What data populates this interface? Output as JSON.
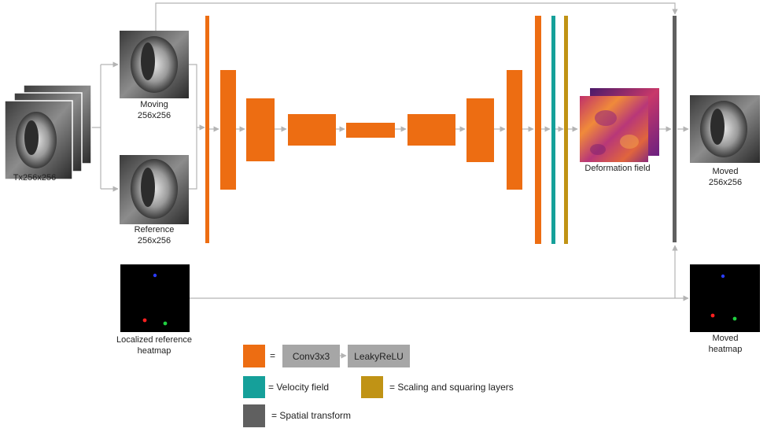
{
  "labels": {
    "input_stack": "Tx256x256",
    "moving": "Moving",
    "moving_size": "256x256",
    "reference": "Reference",
    "reference_size": "256x256",
    "deformation": "Deformation field",
    "moved": "Moved",
    "moved_size": "256x256",
    "heatmap_ref_line1": "Localized reference",
    "heatmap_ref_line2": "heatmap",
    "heatmap_moved_line1": "Moved",
    "heatmap_moved_line2": "heatmap"
  },
  "legend": {
    "equals": "=",
    "conv": "Conv3x3",
    "relu": "LeakyReLU",
    "velocity": "= Velocity field",
    "scaling": "= Scaling and squaring layers",
    "spatial": "= Spatial transform"
  },
  "colors": {
    "conv": "#ed6d12",
    "velocity": "#15a09a",
    "scaling": "#c09315",
    "spatial": "#606060",
    "arrow": "#b4b4b4",
    "op_box": "#a6a6a6"
  },
  "icons": {
    "mri": "cardiac-mri-image",
    "heatmap": "landmark-heatmap-image",
    "deformation": "deformation-field-image"
  }
}
